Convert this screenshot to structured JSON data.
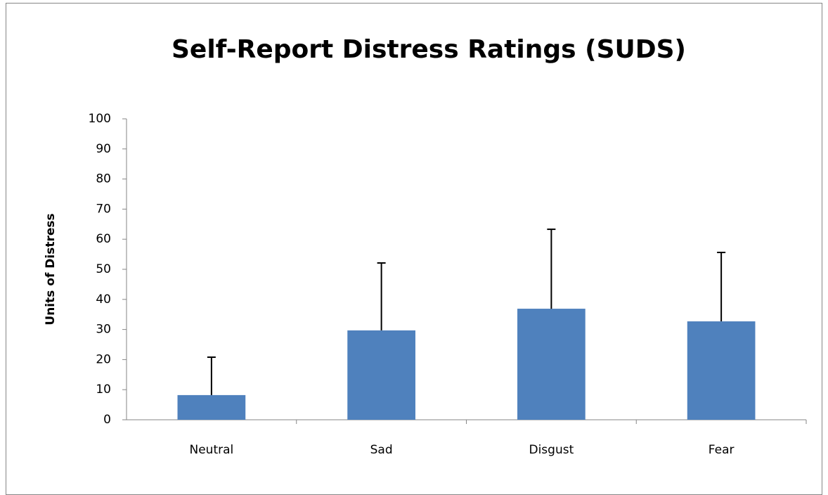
{
  "chart_data": {
    "type": "bar",
    "title": "Self-Report Distress Ratings (SUDS)",
    "y_label": "Units of Distress",
    "categories": [
      "Neutral",
      "Sad",
      "Disgust",
      "Fear"
    ],
    "values": [
      8.2,
      29.7,
      36.9,
      32.7
    ],
    "errors": [
      12.6,
      22.4,
      26.4,
      22.9
    ],
    "color": "#4f81bd",
    "ylim": [
      0,
      100
    ],
    "yticks": [
      0,
      10,
      20,
      30,
      40,
      50,
      60,
      70,
      80,
      90,
      100
    ],
    "grid": false
  }
}
